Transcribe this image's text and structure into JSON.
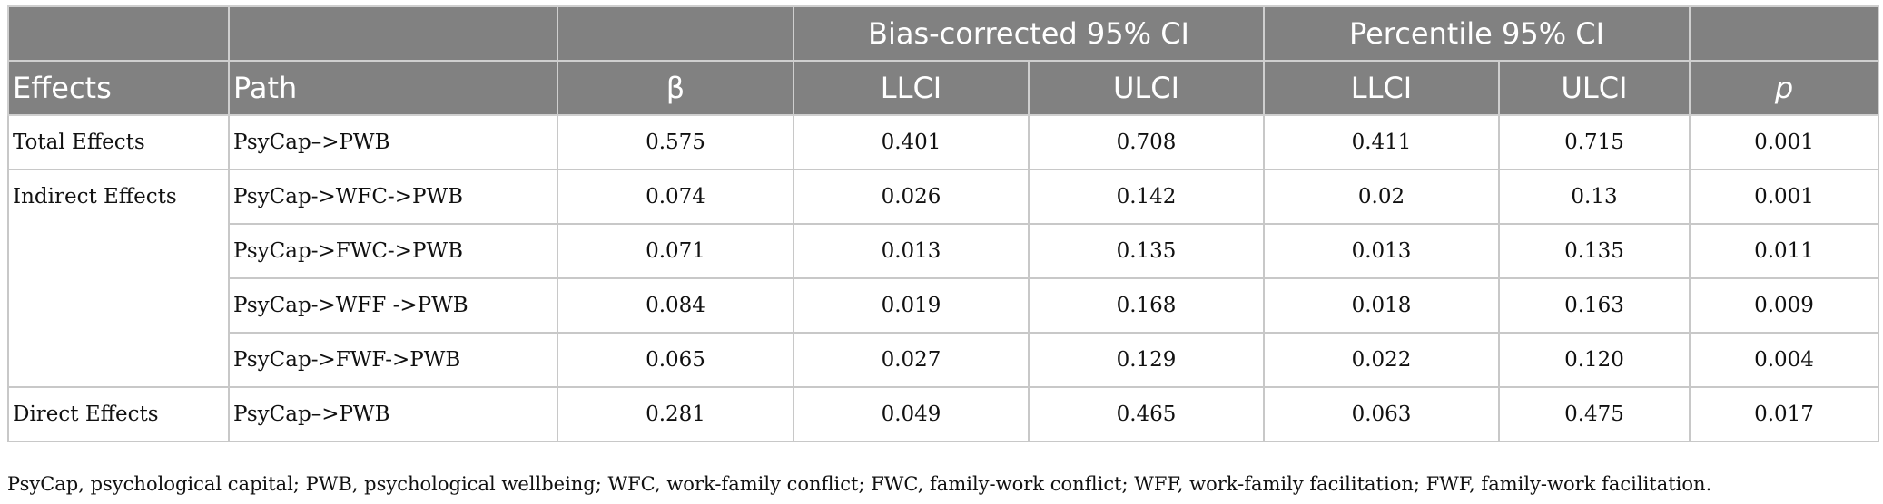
{
  "table": {
    "header_top": {
      "empty_1": "",
      "empty_2": "",
      "empty_3": "",
      "bias_corrected": "Bias-corrected 95% CI",
      "percentile": "Percentile 95% CI",
      "empty_4": ""
    },
    "columns": {
      "effects": "Effects",
      "path": "Path",
      "beta": "β",
      "bc_llci": "LLCI",
      "bc_ulci": "ULCI",
      "p_llci": "LLCI",
      "p_ulci": "ULCI",
      "p": "p"
    },
    "groups": {
      "total": "Total Effects",
      "indirect": "Indirect Effects",
      "direct": "Direct Effects"
    },
    "rows": [
      {
        "path": "PsyCap–>PWB",
        "beta": "0.575",
        "bc_llci": "0.401",
        "bc_ulci": "0.708",
        "p_llci": "0.411",
        "p_ulci": "0.715",
        "p": "0.001"
      },
      {
        "path": "PsyCap->WFC->PWB",
        "beta": "0.074",
        "bc_llci": "0.026",
        "bc_ulci": "0.142",
        "p_llci": "0.02",
        "p_ulci": "0.13",
        "p": "0.001"
      },
      {
        "path": "PsyCap->FWC->PWB",
        "beta": "0.071",
        "bc_llci": "0.013",
        "bc_ulci": "0.135",
        "p_llci": "0.013",
        "p_ulci": "0.135",
        "p": "0.011"
      },
      {
        "path": "PsyCap->WFF ->PWB",
        "beta": "0.084",
        "bc_llci": "0.019",
        "bc_ulci": "0.168",
        "p_llci": "0.018",
        "p_ulci": "0.163",
        "p": "0.009"
      },
      {
        "path": "PsyCap->FWF->PWB",
        "beta": "0.065",
        "bc_llci": "0.027",
        "bc_ulci": "0.129",
        "p_llci": "0.022",
        "p_ulci": "0.120",
        "p": "0.004"
      },
      {
        "path": "PsyCap–>PWB",
        "beta": "0.281",
        "bc_llci": "0.049",
        "bc_ulci": "0.465",
        "p_llci": "0.063",
        "p_ulci": "0.475",
        "p": "0.017"
      }
    ]
  },
  "footnote": "PsyCap, psychological capital; PWB, psychological wellbeing; WFC, work-family conflict; FWC, family-work conflict; WFF, work-family facilitation; FWF, family-work facilitation.",
  "colors": {
    "header_bg": "#818181",
    "header_text": "#ffffff",
    "grid_line": "#c8c8c8"
  }
}
